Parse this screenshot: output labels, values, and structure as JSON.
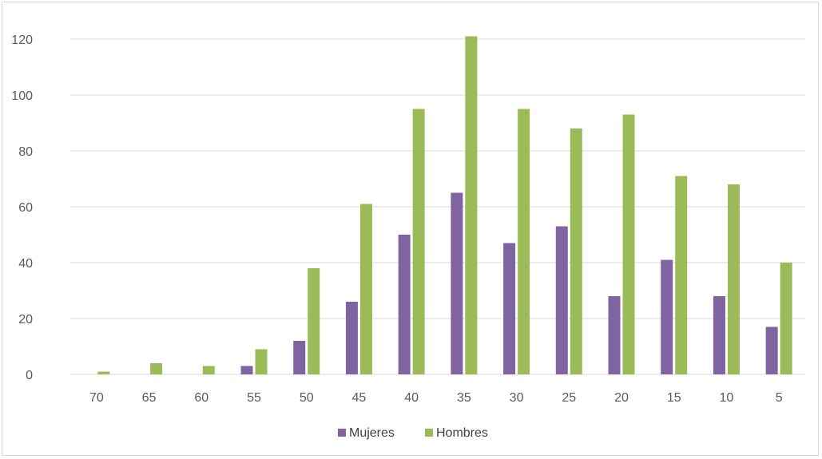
{
  "chart_data": {
    "type": "bar",
    "categories": [
      "70",
      "65",
      "60",
      "55",
      "50",
      "45",
      "40",
      "35",
      "30",
      "25",
      "20",
      "15",
      "10",
      "5"
    ],
    "series": [
      {
        "name": "Mujeres",
        "color": "#8064a2",
        "values": [
          0,
          0,
          0,
          3,
          12,
          26,
          50,
          65,
          47,
          53,
          28,
          41,
          28,
          17
        ]
      },
      {
        "name": "Hombres",
        "color": "#9bbb59",
        "values": [
          1,
          4,
          3,
          9,
          38,
          61,
          95,
          121,
          95,
          88,
          93,
          71,
          68,
          40
        ]
      }
    ],
    "ylim": [
      0,
      120
    ],
    "yticks": [
      0,
      20,
      40,
      60,
      80,
      100,
      120
    ],
    "grid": true,
    "legend_position": "bottom",
    "gridline_color": "#d9d9d9"
  }
}
